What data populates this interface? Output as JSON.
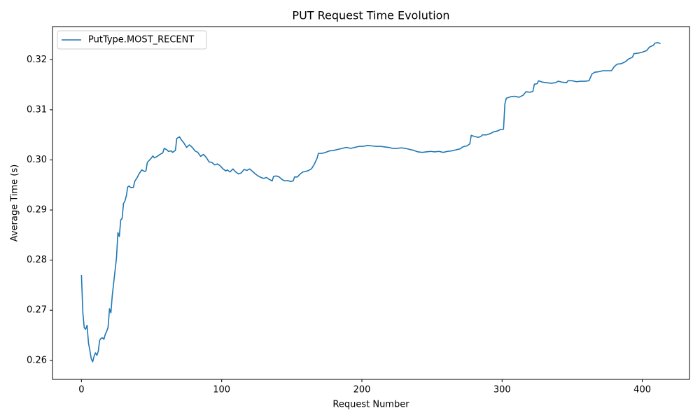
{
  "chart_data": {
    "type": "line",
    "title": "PUT Request Time Evolution",
    "x_label": "Request Number",
    "y_label": "Average Time (s)",
    "x": [
      0,
      1,
      2,
      3,
      4,
      5,
      6,
      7,
      8,
      9,
      10,
      11,
      12,
      13,
      14,
      15,
      16,
      17,
      18,
      19,
      20,
      21,
      22,
      23,
      24,
      25,
      26,
      27,
      28,
      29,
      30,
      31,
      32,
      33,
      34,
      35,
      37,
      38,
      40,
      41,
      43,
      45,
      46,
      47,
      49,
      51,
      52,
      54,
      56,
      58,
      59,
      61,
      62,
      64,
      65,
      67,
      68,
      70,
      71,
      73,
      75,
      77,
      79,
      81,
      83,
      85,
      87,
      89,
      91,
      93,
      95,
      97,
      99,
      101,
      103,
      104,
      106,
      108,
      110,
      112,
      114,
      116,
      118,
      120,
      122,
      124,
      126,
      128,
      130,
      132,
      134,
      136,
      137,
      139,
      141,
      143,
      145,
      147,
      149,
      151,
      152,
      154,
      156,
      158,
      160,
      162,
      164,
      166,
      168,
      169,
      171,
      173,
      175,
      177,
      180,
      183,
      186,
      189,
      192,
      195,
      198,
      201,
      204,
      207,
      210,
      213,
      216,
      219,
      222,
      225,
      228,
      231,
      234,
      237,
      240,
      243,
      246,
      249,
      252,
      255,
      258,
      261,
      264,
      267,
      270,
      272,
      275,
      277,
      278,
      280,
      283,
      285,
      286,
      289,
      292,
      294,
      297,
      299,
      301,
      302,
      303,
      306,
      309,
      312,
      315,
      317,
      320,
      322,
      323,
      325,
      326,
      329,
      332,
      335,
      338,
      340,
      343,
      346,
      347,
      350,
      353,
      356,
      359,
      362,
      364,
      366,
      369,
      372,
      375,
      378,
      380,
      382,
      385,
      388,
      390,
      393,
      394,
      397,
      400,
      403,
      405,
      408,
      409,
      411,
      413
    ],
    "series": [
      {
        "name": "PutType.MOST_RECENT",
        "color": "#1f77b4",
        "values": [
          0.277,
          0.2695,
          0.2665,
          0.2662,
          0.267,
          0.2635,
          0.262,
          0.2603,
          0.2597,
          0.2608,
          0.2615,
          0.261,
          0.2618,
          0.264,
          0.2644,
          0.2645,
          0.2642,
          0.2652,
          0.2658,
          0.2666,
          0.2703,
          0.2695,
          0.273,
          0.2755,
          0.278,
          0.2805,
          0.2855,
          0.2847,
          0.288,
          0.2883,
          0.2913,
          0.2918,
          0.2928,
          0.2946,
          0.2948,
          0.2945,
          0.2945,
          0.2957,
          0.2966,
          0.2972,
          0.298,
          0.2977,
          0.2978,
          0.2995,
          0.3001,
          0.3008,
          0.3004,
          0.3007,
          0.3011,
          0.3014,
          0.3023,
          0.302,
          0.3017,
          0.3018,
          0.3015,
          0.3019,
          0.3043,
          0.3046,
          0.3041,
          0.3034,
          0.3025,
          0.303,
          0.3025,
          0.3018,
          0.3015,
          0.3007,
          0.3011,
          0.3005,
          0.2996,
          0.2995,
          0.299,
          0.2992,
          0.2988,
          0.2982,
          0.2978,
          0.298,
          0.2976,
          0.2982,
          0.2976,
          0.2972,
          0.2974,
          0.2981,
          0.2979,
          0.2982,
          0.2977,
          0.2972,
          0.2968,
          0.2965,
          0.2963,
          0.2965,
          0.2961,
          0.2958,
          0.2967,
          0.2968,
          0.2966,
          0.2961,
          0.2958,
          0.2959,
          0.2957,
          0.2958,
          0.2966,
          0.2966,
          0.2972,
          0.2976,
          0.2977,
          0.2979,
          0.2982,
          0.2991,
          0.3003,
          0.3013,
          0.3013,
          0.3014,
          0.3016,
          0.3018,
          0.3019,
          0.3021,
          0.3023,
          0.3025,
          0.3023,
          0.3025,
          0.3027,
          0.3027,
          0.3029,
          0.3028,
          0.3027,
          0.3027,
          0.3026,
          0.3025,
          0.3023,
          0.3023,
          0.3024,
          0.3023,
          0.3021,
          0.3019,
          0.3016,
          0.3015,
          0.3016,
          0.3017,
          0.3016,
          0.3017,
          0.3015,
          0.3017,
          0.3018,
          0.302,
          0.3022,
          0.3026,
          0.3028,
          0.3032,
          0.3049,
          0.3047,
          0.3045,
          0.3047,
          0.305,
          0.305,
          0.3053,
          0.3056,
          0.3058,
          0.3061,
          0.3061,
          0.3112,
          0.3123,
          0.3126,
          0.3127,
          0.3125,
          0.3129,
          0.3136,
          0.3135,
          0.3137,
          0.3151,
          0.3152,
          0.3158,
          0.3155,
          0.3154,
          0.3153,
          0.3154,
          0.3157,
          0.3155,
          0.3154,
          0.3158,
          0.3158,
          0.3156,
          0.3157,
          0.3157,
          0.3158,
          0.3171,
          0.3175,
          0.3176,
          0.3178,
          0.3178,
          0.3178,
          0.3186,
          0.3191,
          0.3192,
          0.3196,
          0.3201,
          0.3205,
          0.3212,
          0.3213,
          0.3215,
          0.3218,
          0.3225,
          0.3229,
          0.3233,
          0.3234,
          0.3232
        ]
      }
    ],
    "xlim": [
      -20.65,
      433.65
    ],
    "ylim": [
      0.2562,
      0.3266
    ],
    "xticks": [
      0,
      100,
      200,
      300,
      400
    ],
    "yticks": [
      0.26,
      0.27,
      0.28,
      0.29,
      {
        "value": 0.3,
        "label": "0.30"
      },
      0.31,
      0.32
    ],
    "legend": "upper left"
  }
}
